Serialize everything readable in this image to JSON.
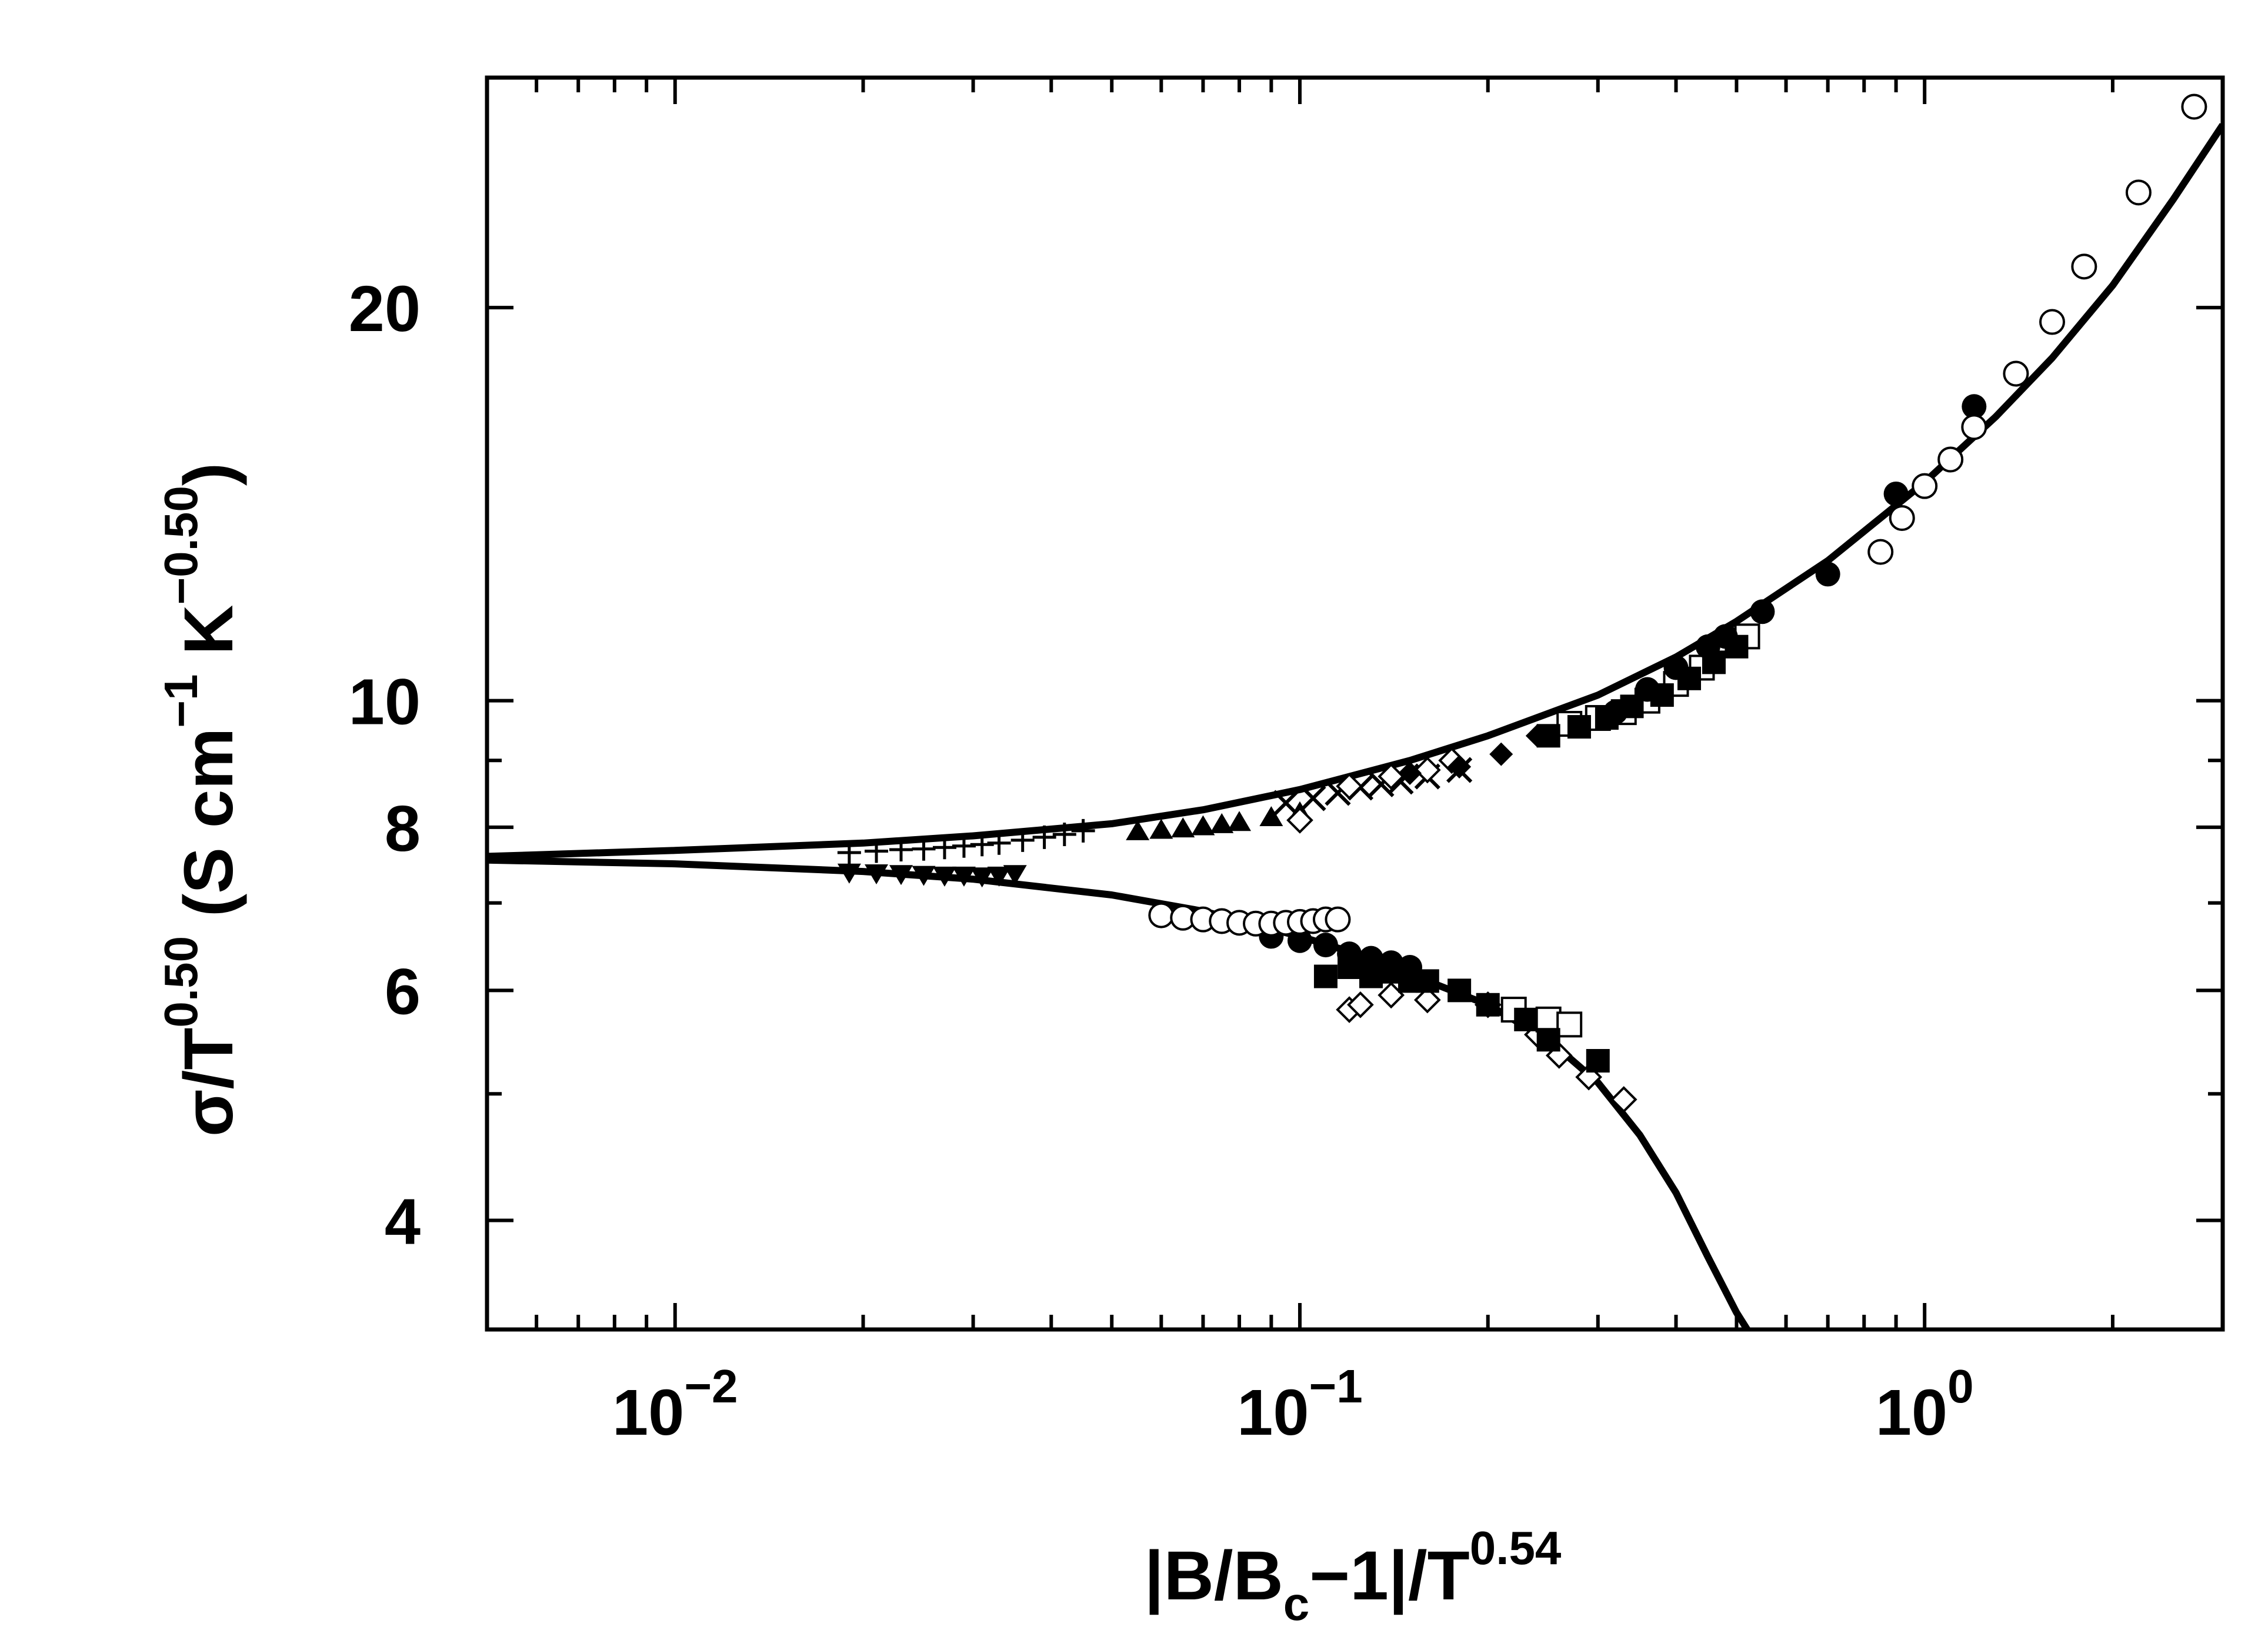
{
  "chart_data": {
    "type": "scatter",
    "xscale": "log",
    "yscale": "log",
    "xlim": [
      0.005,
      3.0
    ],
    "ylim": [
      3.3,
      30
    ],
    "grid": false,
    "xlabel": {
      "main": "|B/B",
      "sub": "c",
      "mid": "−1|/T",
      "sup": "0.54"
    },
    "ylabel": {
      "pre": "σ/T",
      "sup1": "0.50",
      "mid": "  (S  cm",
      "sup2": "−1",
      "mid2": "  K",
      "sup3": "−0.50",
      "post": ")"
    },
    "x_ticks": [
      {
        "value": 0.01,
        "base": "10",
        "exp": "−2"
      },
      {
        "value": 0.1,
        "base": "10",
        "exp": "−1"
      },
      {
        "value": 1,
        "base": "10",
        "exp": "0"
      }
    ],
    "y_ticks": [
      {
        "value": 4,
        "label": "4"
      },
      {
        "value": 6,
        "label": "6"
      },
      {
        "value": 8,
        "label": "8"
      },
      {
        "value": 10,
        "label": "10"
      },
      {
        "value": 20,
        "label": "20"
      }
    ],
    "curves": [
      {
        "branch": "upper",
        "x": [
          0.005,
          0.01,
          0.02,
          0.03,
          0.05,
          0.07,
          0.1,
          0.15,
          0.2,
          0.3,
          0.4,
          0.5,
          0.7,
          1.0,
          1.3,
          1.6,
          2.0,
          2.5,
          3.0
        ],
        "y": [
          7.6,
          7.68,
          7.78,
          7.88,
          8.05,
          8.25,
          8.55,
          9.0,
          9.4,
          10.1,
          10.8,
          11.5,
          12.8,
          14.7,
          16.5,
          18.3,
          20.8,
          24.2,
          27.6
        ]
      },
      {
        "branch": "lower",
        "x": [
          0.005,
          0.01,
          0.02,
          0.03,
          0.05,
          0.07,
          0.1,
          0.13,
          0.16,
          0.2,
          0.25,
          0.3,
          0.35,
          0.4,
          0.45,
          0.5,
          0.52
        ],
        "y": [
          7.55,
          7.5,
          7.4,
          7.3,
          7.1,
          6.9,
          6.6,
          6.35,
          6.1,
          5.85,
          5.5,
          5.1,
          4.65,
          4.2,
          3.75,
          3.4,
          3.3
        ]
      }
    ],
    "series": [
      {
        "marker": "plus",
        "x": [
          0.019,
          0.021,
          0.023,
          0.025,
          0.027,
          0.029,
          0.031,
          0.033,
          0.036,
          0.039,
          0.042,
          0.045
        ],
        "y": [
          7.65,
          7.67,
          7.69,
          7.7,
          7.72,
          7.74,
          7.76,
          7.78,
          7.82,
          7.86,
          7.9,
          7.95
        ]
      },
      {
        "marker": "down-triangle-filled",
        "x": [
          0.019,
          0.021,
          0.023,
          0.025,
          0.027,
          0.029,
          0.031,
          0.033,
          0.035
        ],
        "y": [
          7.38,
          7.37,
          7.36,
          7.35,
          7.34,
          7.34,
          7.33,
          7.34,
          7.36
        ]
      },
      {
        "marker": "up-triangle-filled",
        "x": [
          0.055,
          0.06,
          0.065,
          0.07,
          0.075,
          0.08,
          0.09,
          0.1
        ],
        "y": [
          7.95,
          7.97,
          7.99,
          8.02,
          8.05,
          8.08,
          8.15,
          8.22
        ]
      },
      {
        "marker": "cross",
        "x": [
          0.095,
          0.105,
          0.115,
          0.125,
          0.135,
          0.145,
          0.16,
          0.18
        ],
        "y": [
          8.35,
          8.42,
          8.5,
          8.58,
          8.63,
          8.67,
          8.75,
          8.85
        ]
      },
      {
        "marker": "diamond-open",
        "x": [
          0.1,
          0.12,
          0.14,
          0.16,
          0.175,
          0.12,
          0.125,
          0.14,
          0.16,
          0.2,
          0.24,
          0.26,
          0.29,
          0.33
        ],
        "y": [
          8.1,
          8.6,
          8.75,
          8.85,
          9.0,
          5.8,
          5.85,
          5.95,
          5.9,
          5.85,
          5.55,
          5.35,
          5.15,
          4.95
        ]
      },
      {
        "marker": "diamond-filled",
        "x": [
          0.15,
          0.18,
          0.21,
          0.24,
          0.27
        ],
        "y": [
          8.8,
          8.9,
          9.1,
          9.4,
          9.6
        ]
      },
      {
        "marker": "square-open",
        "x": [
          0.27,
          0.3,
          0.33,
          0.36,
          0.4,
          0.44,
          0.52,
          0.22,
          0.25,
          0.27
        ],
        "y": [
          9.6,
          9.7,
          9.8,
          10.0,
          10.3,
          10.6,
          11.2,
          5.8,
          5.7,
          5.65
        ]
      },
      {
        "marker": "square-filled",
        "x": [
          0.25,
          0.28,
          0.31,
          0.34,
          0.38,
          0.42,
          0.46,
          0.5,
          0.11,
          0.12,
          0.13,
          0.14,
          0.15,
          0.16,
          0.18,
          0.2,
          0.23,
          0.25,
          0.3
        ],
        "y": [
          9.4,
          9.55,
          9.7,
          9.9,
          10.1,
          10.4,
          10.7,
          11.0,
          6.15,
          6.25,
          6.15,
          6.2,
          6.1,
          6.1,
          6.0,
          5.85,
          5.7,
          5.5,
          5.3
        ]
      },
      {
        "marker": "circle-filled",
        "x": [
          0.32,
          0.36,
          0.4,
          0.45,
          0.48,
          0.55,
          0.7,
          0.9,
          1.2,
          0.09,
          0.1,
          0.11,
          0.12,
          0.13,
          0.14,
          0.15
        ],
        "y": [
          9.8,
          10.2,
          10.6,
          11.0,
          11.2,
          11.7,
          12.5,
          14.4,
          16.8,
          6.6,
          6.55,
          6.5,
          6.4,
          6.35,
          6.3,
          6.25
        ]
      },
      {
        "marker": "circle-open",
        "x": [
          0.06,
          0.065,
          0.07,
          0.075,
          0.08,
          0.085,
          0.09,
          0.095,
          0.1,
          0.105,
          0.11,
          0.115,
          0.85,
          0.92,
          1.0,
          1.1,
          1.2,
          1.4,
          1.6,
          1.8,
          2.2,
          2.7
        ],
        "y": [
          6.85,
          6.82,
          6.8,
          6.78,
          6.76,
          6.75,
          6.75,
          6.76,
          6.77,
          6.78,
          6.8,
          6.8,
          13.0,
          13.8,
          14.6,
          15.3,
          16.2,
          17.8,
          19.5,
          21.5,
          24.5,
          28.5
        ]
      }
    ]
  }
}
